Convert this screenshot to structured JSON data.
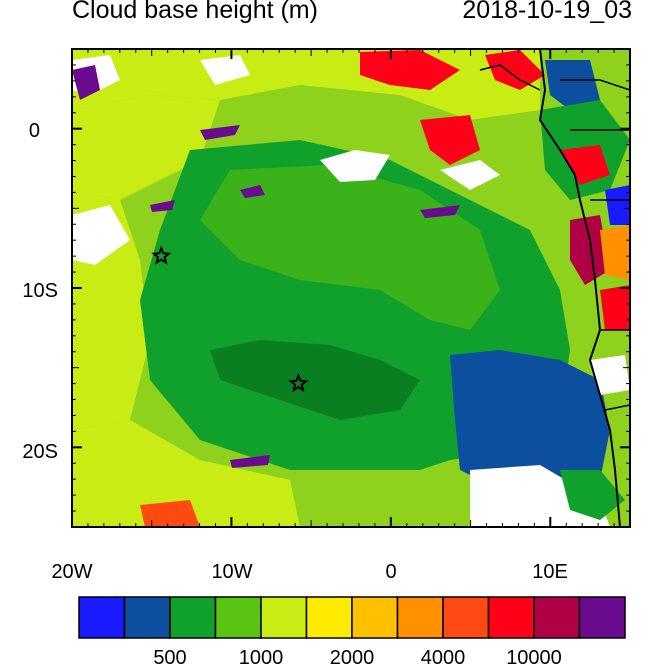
{
  "title": "Cloud base height (m)",
  "timestamp": "2018-10-19_03",
  "map": {
    "lon_range": [
      -20,
      15
    ],
    "lat_range": [
      -25,
      5
    ],
    "x_ticks": [
      {
        "lon": -20,
        "label": "20W"
      },
      {
        "lon": -10,
        "label": "10W"
      },
      {
        "lon": 0,
        "label": "0"
      },
      {
        "lon": 10,
        "label": "10E"
      }
    ],
    "y_ticks": [
      {
        "lat": 0,
        "label": "0"
      },
      {
        "lat": -10,
        "label": "10S"
      },
      {
        "lat": -20,
        "label": "20S"
      }
    ],
    "stars": [
      {
        "lon": -14.4,
        "lat": -8.0
      },
      {
        "lon": -5.8,
        "lat": -16.0
      }
    ]
  },
  "colorbar": {
    "colors": [
      "#1a1aff",
      "#0b4f9e",
      "#10a02c",
      "#5bc412",
      "#c8ec14",
      "#ffeb00",
      "#ffc000",
      "#ff9000",
      "#ff4a12",
      "#ff0018",
      "#b00045",
      "#6a0a8f"
    ],
    "labels": [
      {
        "boundary": 2,
        "text": "500"
      },
      {
        "boundary": 4,
        "text": "1000"
      },
      {
        "boundary": 6,
        "text": "2000"
      },
      {
        "boundary": 8,
        "text": "4000"
      },
      {
        "boundary": 10,
        "text": "10000"
      }
    ]
  }
}
